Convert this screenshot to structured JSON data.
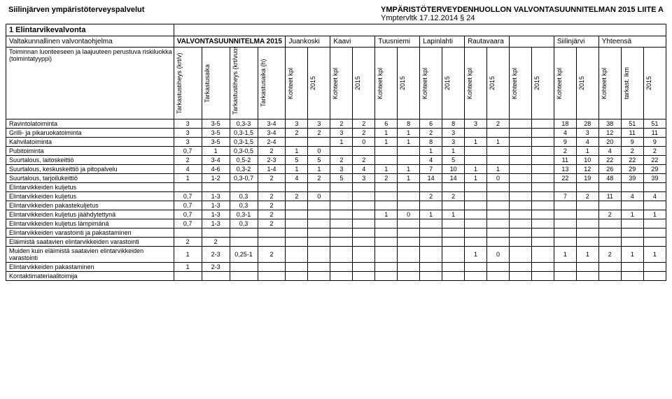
{
  "header": {
    "left": "Siilinjärven ympäristöterveyspalvelut",
    "right1": "YMPÄRISTÖTERVEYDENHUOLLON VALVONTASUUNNITELMAN 2015 LIITE A",
    "right2": "Ymptervltk 17.12.2014 § 24"
  },
  "section": "1 Elintarvikevalvonta",
  "subsection": "Valtakunnallinen valvontaohjelma",
  "plan_title": "VALVONTASUUNNITELMA 2015",
  "desc": "Toiminnan luonteeseen ja laajuuteen perustuva riskiluokka (toimintatyyppi)",
  "colheads": {
    "c1": "Tarkastustiheys (krt/v)",
    "c2": "Tarkastusaika",
    "c3": "Tarkastustiheys (krt/vuosi)",
    "c4": "Tarkastusaika (h)",
    "kpl": "Kohteet kpl",
    "yr": "2015",
    "lkm": "tarkast. lkm"
  },
  "munis": [
    "Juankoski",
    "Kaavi",
    "Tuusniemi",
    "Lapinlahti",
    "Rautavaara",
    "",
    "Siilinjärvi",
    "Yhteensä"
  ],
  "rows": [
    {
      "label": "Ravintolatoiminta",
      "c": [
        "3",
        "3-5",
        "0,3-3",
        "3-4",
        "3",
        "3",
        "2",
        "2",
        "6",
        "8",
        "6",
        "8",
        "3",
        "2",
        "",
        "",
        "18",
        "28",
        "38",
        "51",
        "51"
      ]
    },
    {
      "label": "Grilli- ja pikaruokatoiminta",
      "c": [
        "3",
        "3-5",
        "0,3-1,5",
        "3-4",
        "2",
        "2",
        "3",
        "2",
        "1",
        "1",
        "2",
        "3",
        "",
        "",
        "",
        "",
        "4",
        "3",
        "12",
        "11",
        "11"
      ]
    },
    {
      "label": "Kahvilatoiminta",
      "c": [
        "3",
        "3-5",
        "0,3-1,5",
        "2-4",
        "",
        "",
        "1",
        "0",
        "1",
        "1",
        "8",
        "3",
        "1",
        "1",
        "",
        "",
        "9",
        "4",
        "20",
        "9",
        "9"
      ]
    },
    {
      "label": "Pubitoiminta",
      "c": [
        "0,7",
        "1",
        "0,3-0,5",
        "2",
        "1",
        "0",
        "",
        "",
        "",
        "",
        "1",
        "1",
        "",
        "",
        "",
        "",
        "2",
        "1",
        "4",
        "2",
        "2"
      ]
    },
    {
      "label": "Suurtalous, laitoskeittiö",
      "c": [
        "2",
        "3-4",
        "0,5-2",
        "2-3",
        "5",
        "5",
        "2",
        "2",
        "",
        "",
        "4",
        "5",
        "",
        "",
        "",
        "",
        "11",
        "10",
        "22",
        "22",
        "22"
      ]
    },
    {
      "label": "Suurtalous, keskuskeittiö ja pitopalvelu",
      "c": [
        "4",
        "4-6",
        "0,3-2",
        "1-4",
        "1",
        "1",
        "3",
        "4",
        "1",
        "1",
        "7",
        "10",
        "1",
        "1",
        "",
        "",
        "13",
        "12",
        "26",
        "29",
        "29"
      ]
    },
    {
      "label": "Suurtalous, tarjoilukeittiö",
      "c": [
        "1",
        "1-2",
        "0,3-0,7",
        "2",
        "4",
        "2",
        "5",
        "3",
        "2",
        "1",
        "14",
        "14",
        "1",
        "0",
        "",
        "",
        "22",
        "19",
        "48",
        "39",
        "39"
      ]
    },
    {
      "label": "Elintarvikkeiden kuljetus",
      "group": true
    },
    {
      "label": "Elintarvikkeiden kuljetus",
      "c": [
        "0,7",
        "1-3",
        "0,3",
        "2",
        "2",
        "0",
        "",
        "",
        "",
        "",
        "2",
        "2",
        "",
        "",
        "",
        "",
        "7",
        "2",
        "11",
        "4",
        "4"
      ]
    },
    {
      "label": "Elintarvikkeiden pakastekuljetus",
      "c": [
        "0,7",
        "1-3",
        "0,3",
        "2",
        "",
        "",
        "",
        "",
        "",
        "",
        "",
        "",
        "",
        "",
        "",
        "",
        "",
        "",
        "",
        "",
        ""
      ]
    },
    {
      "label": "Elintarvikkeiden kuljetus jäähdytettynä",
      "c": [
        "0,7",
        "1-3",
        "0,3-1",
        "2",
        "",
        "",
        "",
        "",
        "1",
        "0",
        "1",
        "1",
        "",
        "",
        "",
        "",
        "",
        "",
        "2",
        "1",
        "1"
      ]
    },
    {
      "label": "Elintarvikkeiden kuljetus lämpimänä",
      "c": [
        "0,7",
        "1-3",
        "0,3",
        "2",
        "",
        "",
        "",
        "",
        "",
        "",
        "",
        "",
        "",
        "",
        "",
        "",
        "",
        "",
        "",
        "",
        ""
      ]
    },
    {
      "label": "Elintarvikkeiden varastointi ja pakastaminen",
      "group": true
    },
    {
      "label": "Eläimistä saatavien elintarvikkeiden varastointi",
      "c": [
        "2",
        "2",
        "",
        "",
        "",
        "",
        "",
        "",
        "",
        "",
        "",
        "",
        "",
        "",
        "",
        "",
        "",
        "",
        "",
        "",
        ""
      ]
    },
    {
      "label": "Muiden kuin eläimistä saatavien elintarvikkeiden varastointi",
      "c": [
        "1",
        "2-3",
        "0,25-1",
        "2",
        "",
        "",
        "",
        "",
        "",
        "",
        "",
        "",
        "1",
        "0",
        "",
        "",
        "1",
        "1",
        "2",
        "1",
        "1"
      ]
    },
    {
      "label": "Elintarvikkeiden pakastaminen",
      "c": [
        "1",
        "2-3",
        "",
        "",
        "",
        "",
        "",
        "",
        "",
        "",
        "",
        "",
        "",
        "",
        "",
        "",
        "",
        "",
        "",
        "",
        ""
      ]
    },
    {
      "label": "Kontaktimateriaalitoimija",
      "group": true
    }
  ],
  "colors": {
    "border": "#000000",
    "bg": "#ffffff",
    "text": "#000000"
  },
  "fontsize": {
    "body": 10,
    "header": 11,
    "cell": 9
  }
}
